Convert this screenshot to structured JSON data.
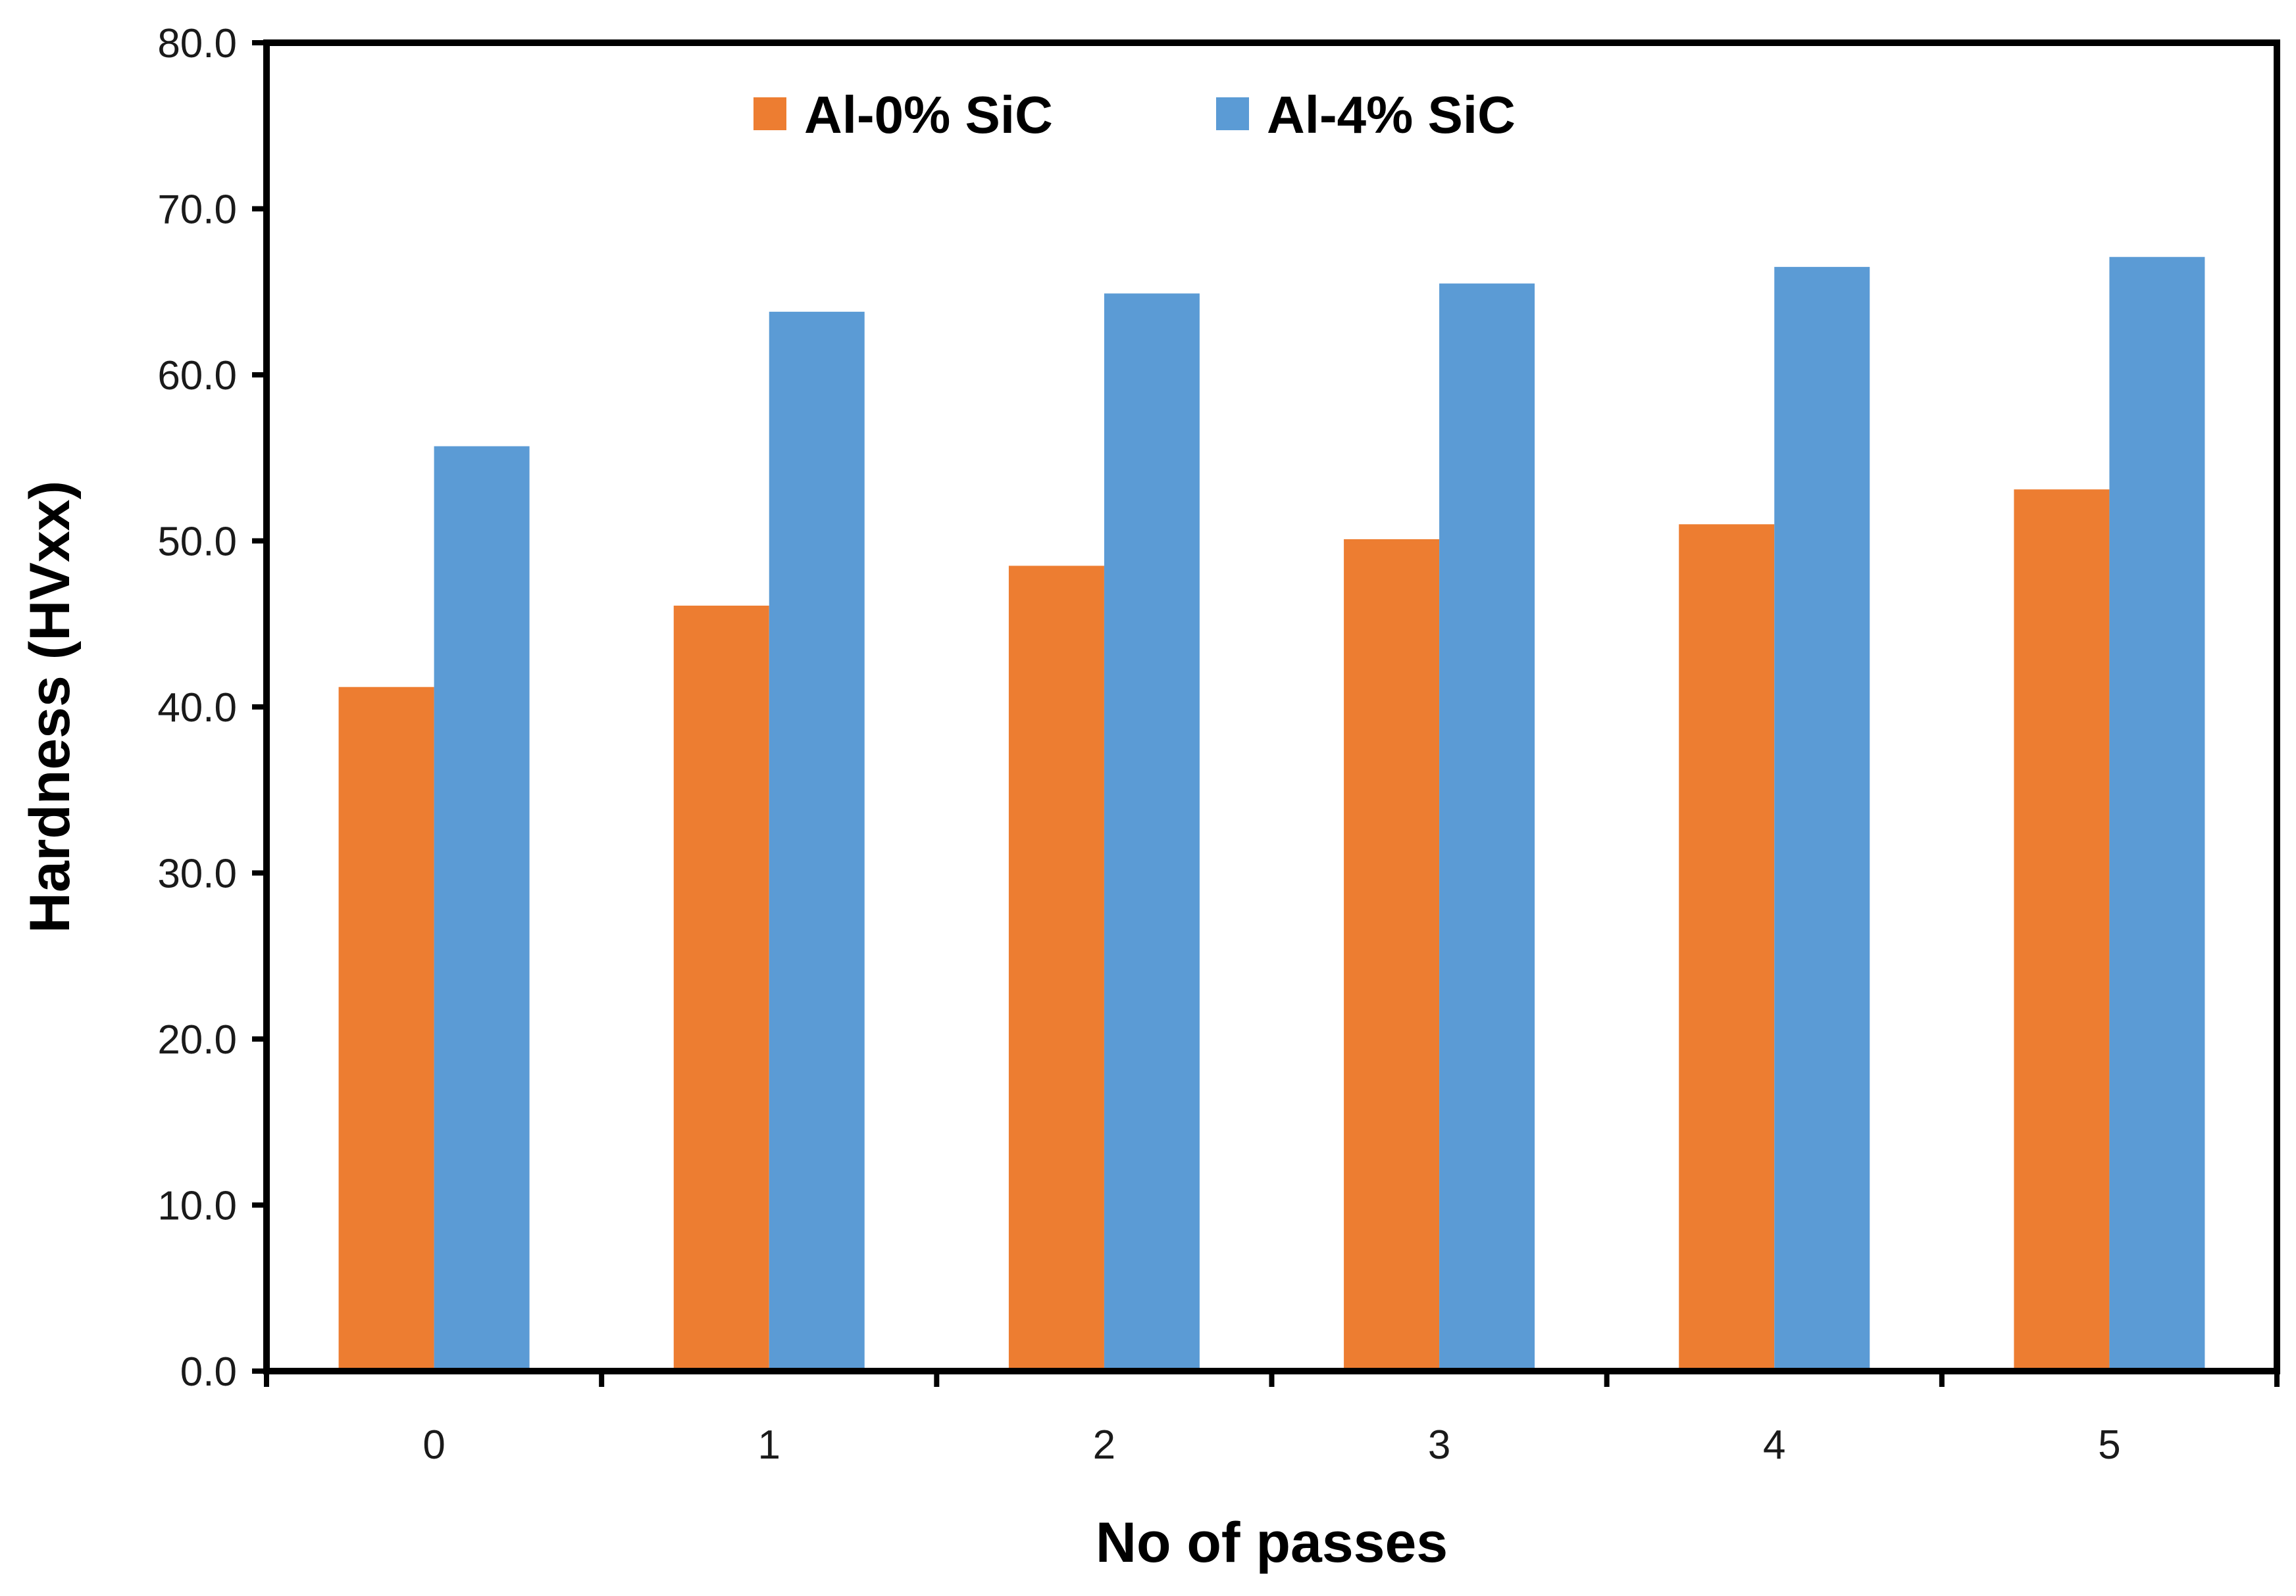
{
  "chart_data": {
    "type": "bar",
    "title": "",
    "xlabel": "No of passes",
    "ylabel": "Hardness (HVxx)",
    "categories": [
      "0",
      "1",
      "2",
      "3",
      "4",
      "5"
    ],
    "series": [
      {
        "name": "Al-0% SiC",
        "color": "#ED7D31",
        "values": [
          41.2,
          46.1,
          48.5,
          50.1,
          51.0,
          53.1
        ]
      },
      {
        "name": "Al-4% SiC",
        "color": "#5B9BD5",
        "values": [
          55.7,
          63.8,
          64.9,
          65.5,
          66.5,
          67.1
        ]
      }
    ],
    "ylim": [
      0,
      80
    ],
    "yticks": [
      "0.0",
      "10.0",
      "20.0",
      "30.0",
      "40.0",
      "50.0",
      "60.0",
      "70.0",
      "80.0"
    ],
    "grid": false,
    "legend_position": "top-center"
  }
}
